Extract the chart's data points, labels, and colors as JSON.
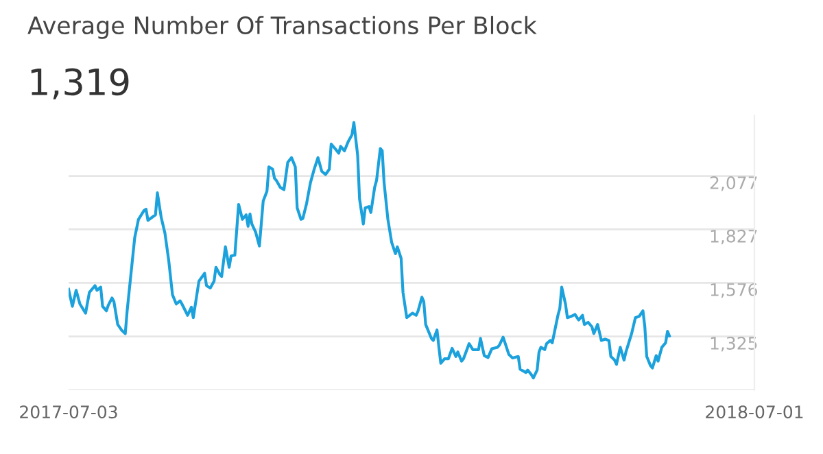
{
  "chart_data": {
    "type": "line",
    "title": "Average Number Of Transactions Per Block",
    "subtitle": "1,319",
    "xlim": [
      "2017-07-03",
      "2018-07-01"
    ],
    "xticks": [
      "2017-07-03",
      "2018-07-01"
    ],
    "ylim": [
      1074,
      2360
    ],
    "yticks": [
      {
        "value": 1074,
        "label": null
      },
      {
        "value": 1325,
        "label": "1,325"
      },
      {
        "value": 1576,
        "label": "1,576"
      },
      {
        "value": 1827,
        "label": "1,827"
      },
      {
        "value": 2077,
        "label": "2,077"
      }
    ],
    "grid": "y",
    "legend": false,
    "marker": "none",
    "line_style": "solid",
    "series": [
      {
        "color": "#1ba1dc",
        "x": [
          "2017-07-03",
          "2017-07-05",
          "2017-07-07",
          "2017-07-09",
          "2017-07-12",
          "2017-07-14",
          "2017-07-17",
          "2017-07-18",
          "2017-07-20",
          "2017-07-21",
          "2017-07-23",
          "2017-07-24",
          "2017-07-26",
          "2017-07-27",
          "2017-07-29",
          "2017-07-31",
          "2017-08-02",
          "2017-08-03",
          "2017-08-04",
          "2017-08-07",
          "2017-08-09",
          "2017-08-12",
          "2017-08-13",
          "2017-08-14",
          "2017-08-16",
          "2017-08-18",
          "2017-08-19",
          "2017-08-21",
          "2017-08-23",
          "2017-08-25",
          "2017-08-27",
          "2017-08-29",
          "2017-08-31",
          "2017-09-01",
          "2017-09-04",
          "2017-09-06",
          "2017-09-07",
          "2017-09-10",
          "2017-09-13",
          "2017-09-14",
          "2017-09-16",
          "2017-09-18",
          "2017-09-19",
          "2017-09-21",
          "2017-09-22",
          "2017-09-24",
          "2017-09-26",
          "2017-09-27",
          "2017-09-29",
          "2017-10-01",
          "2017-10-03",
          "2017-10-05",
          "2017-10-06",
          "2017-10-07",
          "2017-10-08",
          "2017-10-10",
          "2017-10-12",
          "2017-10-14",
          "2017-10-16",
          "2017-10-17",
          "2017-10-19",
          "2017-10-20",
          "2017-10-21",
          "2017-10-23",
          "2017-10-25",
          "2017-10-27",
          "2017-10-29",
          "2017-10-31",
          "2017-11-01",
          "2017-11-03",
          "2017-11-04",
          "2017-11-06",
          "2017-11-08",
          "2017-11-10",
          "2017-11-12",
          "2017-11-14",
          "2017-11-16",
          "2017-11-18",
          "2017-11-19",
          "2017-11-21",
          "2017-11-23",
          "2017-11-24",
          "2017-11-26",
          "2017-11-28",
          "2017-11-30",
          "2017-12-01",
          "2017-12-03",
          "2017-12-04",
          "2017-12-06",
          "2017-12-07",
          "2017-12-09",
          "2017-12-10",
          "2017-12-12",
          "2017-12-13",
          "2017-12-15",
          "2017-12-16",
          "2017-12-17",
          "2017-12-19",
          "2017-12-21",
          "2017-12-23",
          "2017-12-24",
          "2017-12-26",
          "2017-12-27",
          "2017-12-29",
          "2018-01-01",
          "2018-01-03",
          "2018-01-04",
          "2018-01-06",
          "2018-01-07",
          "2018-01-08",
          "2018-01-11",
          "2018-01-12",
          "2018-01-14",
          "2018-01-15",
          "2018-01-16",
          "2018-01-18",
          "2018-01-20",
          "2018-01-22",
          "2018-01-24",
          "2018-01-25",
          "2018-01-27",
          "2018-01-28",
          "2018-01-31",
          "2018-02-02",
          "2018-02-05",
          "2018-02-06",
          "2018-02-08",
          "2018-02-10",
          "2018-02-12",
          "2018-02-15",
          "2018-02-16",
          "2018-02-18",
          "2018-02-19",
          "2018-02-21",
          "2018-02-23",
          "2018-02-26",
          "2018-02-27",
          "2018-03-02",
          "2018-03-03",
          "2018-03-05",
          "2018-03-06",
          "2018-03-08",
          "2018-03-09",
          "2018-03-10",
          "2018-03-12",
          "2018-03-13",
          "2018-03-15",
          "2018-03-16",
          "2018-03-17",
          "2018-03-19",
          "2018-03-20",
          "2018-03-21",
          "2018-03-23",
          "2018-03-24",
          "2018-03-26",
          "2018-03-28",
          "2018-03-30",
          "2018-04-01",
          "2018-04-02",
          "2018-04-04",
          "2018-04-06",
          "2018-04-07",
          "2018-04-09",
          "2018-04-11",
          "2018-04-13",
          "2018-04-15",
          "2018-04-16",
          "2018-04-18",
          "2018-04-19",
          "2018-04-21",
          "2018-04-23",
          "2018-04-24",
          "2018-04-27",
          "2018-04-29",
          "2018-05-01",
          "2018-05-03",
          "2018-05-04",
          "2018-05-05",
          "2018-05-07",
          "2018-05-08",
          "2018-05-10",
          "2018-05-11",
          "2018-05-13",
          "2018-05-15",
          "2018-05-16",
          "2018-05-17"
        ],
        "values": [
          1546,
          1466,
          1541,
          1477,
          1434,
          1531,
          1563,
          1541,
          1556,
          1466,
          1445,
          1471,
          1505,
          1488,
          1381,
          1355,
          1338,
          1445,
          1531,
          1788,
          1874,
          1916,
          1921,
          1869,
          1882,
          1895,
          1998,
          1884,
          1809,
          1681,
          1520,
          1477,
          1492,
          1477,
          1424,
          1462,
          1413,
          1584,
          1621,
          1563,
          1552,
          1584,
          1649,
          1616,
          1606,
          1745,
          1649,
          1702,
          1706,
          1944,
          1874,
          1895,
          1841,
          1899,
          1852,
          1814,
          1749,
          1959,
          2006,
          2120,
          2109,
          2066,
          2056,
          2024,
          2013,
          2141,
          2163,
          2120,
          1927,
          1874,
          1878,
          1949,
          2045,
          2109,
          2163,
          2099,
          2084,
          2109,
          2227,
          2206,
          2184,
          2216,
          2195,
          2238,
          2270,
          2328,
          2174,
          1970,
          1852,
          1927,
          1934,
          1906,
          2024,
          2056,
          2206,
          2195,
          2045,
          1874,
          1766,
          1713,
          1745,
          1691,
          1531,
          1413,
          1434,
          1424,
          1445,
          1509,
          1488,
          1381,
          1316,
          1306,
          1355,
          1274,
          1199,
          1220,
          1220,
          1269,
          1231,
          1252,
          1209,
          1220,
          1291,
          1263,
          1263,
          1316,
          1235,
          1226,
          1267,
          1274,
          1284,
          1321,
          1295,
          1241,
          1224,
          1231,
          1171,
          1156,
          1167,
          1145,
          1130,
          1167,
          1252,
          1274,
          1263,
          1291,
          1306,
          1295,
          1338,
          1424,
          1456,
          1556,
          1477,
          1413,
          1419,
          1428,
          1402,
          1424,
          1381,
          1391,
          1370,
          1338,
          1381,
          1306,
          1312,
          1306,
          1231,
          1214,
          1194,
          1274,
          1214,
          1252,
          1338,
          1413,
          1419,
          1445,
          1370,
          1231,
          1188,
          1177,
          1235,
          1209,
          1274,
          1295,
          1349,
          1327
        ]
      }
    ]
  }
}
